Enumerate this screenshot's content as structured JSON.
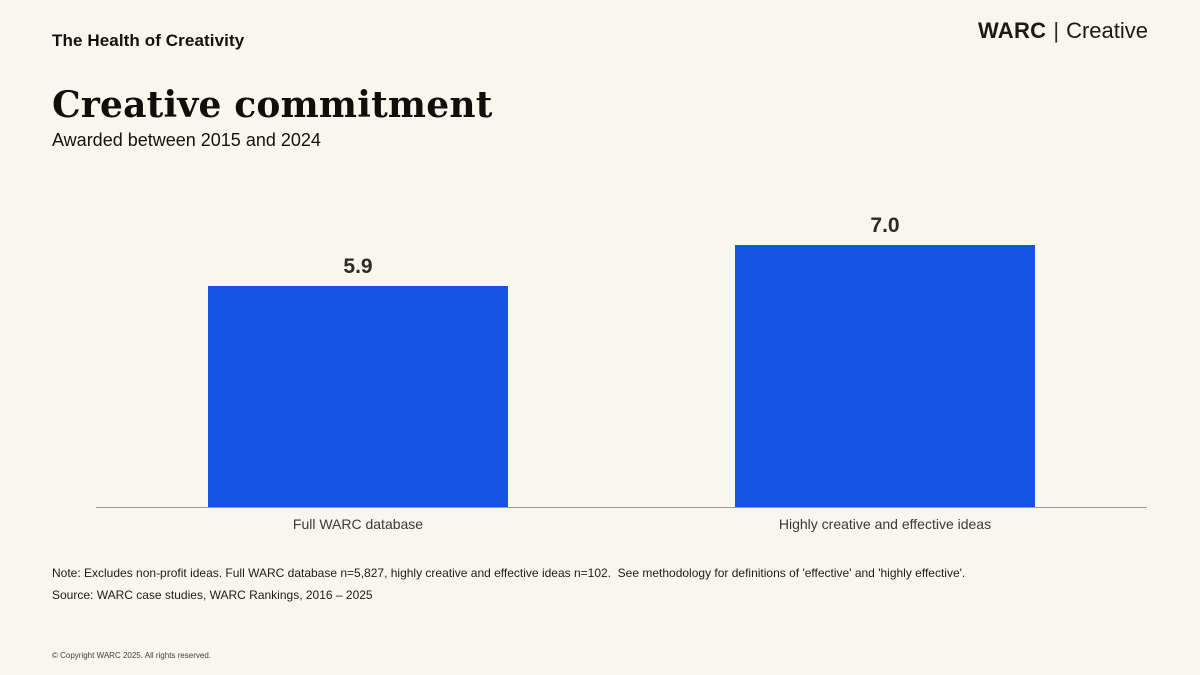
{
  "colors": {
    "background": "#f9f6ec",
    "bar": "#1554e3",
    "axis_line": "#9c9a91",
    "text": "#14130e"
  },
  "header": {
    "eyebrow": "The Health of Creativity",
    "logo": {
      "brand": "WARC",
      "separator": "|",
      "suffix": "Creative"
    }
  },
  "title": "Creative commitment",
  "subtitle": "Awarded between 2015 and 2024",
  "chart_data": {
    "type": "bar",
    "categories": [
      "Full WARC database",
      "Highly creative and effective ideas"
    ],
    "values": [
      5.9,
      7.0
    ],
    "value_labels": [
      "5.9",
      "7.0"
    ],
    "title": "Creative commitment",
    "xlabel": "",
    "ylabel": "",
    "ylim": [
      0,
      7.5
    ],
    "bar_color": "#1554e3",
    "grid": false,
    "legend": false,
    "data_labels_position": "above-bar"
  },
  "footnotes": {
    "note": "Note: Excludes non-profit ideas. Full WARC database n=5,827, highly creative and effective ideas n=102.  See methodology for definitions of 'effective' and 'highly effective'.",
    "source": "Source: WARC case studies, WARC Rankings, 2016 – 2025",
    "copyright": "© Copyright WARC 2025. All rights reserved."
  }
}
